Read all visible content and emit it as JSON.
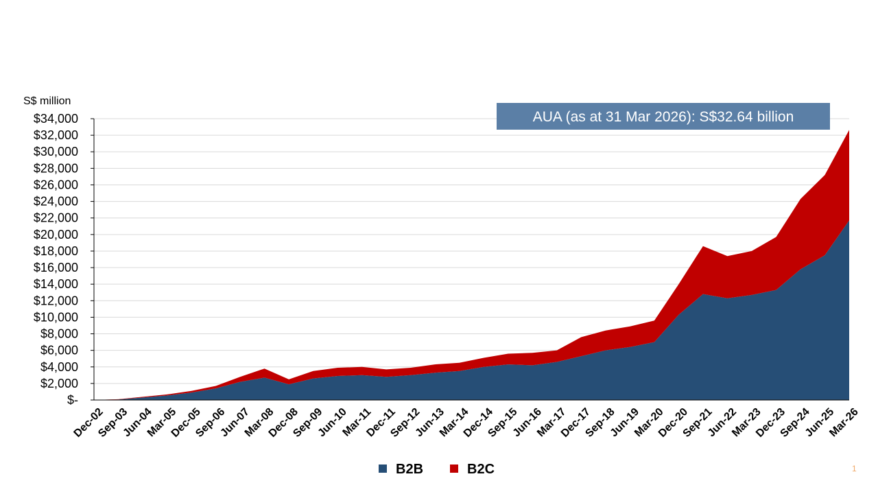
{
  "chart_data": {
    "type": "area",
    "stacked": true,
    "unit_label": "S$ million",
    "annotation": "AUA (as at 31 Mar 2026): S$32.64 billion",
    "ylim": [
      0,
      34000
    ],
    "y_ticks": [
      0,
      2000,
      4000,
      6000,
      8000,
      10000,
      12000,
      14000,
      16000,
      18000,
      20000,
      22000,
      24000,
      26000,
      28000,
      30000,
      32000,
      34000
    ],
    "y_tick_labels": [
      "$-",
      "$2,000",
      "$4,000",
      "$6,000",
      "$8,000",
      "$10,000",
      "$12,000",
      "$14,000",
      "$16,000",
      "$18,000",
      "$20,000",
      "$22,000",
      "$24,000",
      "$26,000",
      "$28,000",
      "$30,000",
      "$32,000",
      "$34,000"
    ],
    "grid": true,
    "legend_position": "bottom",
    "x": [
      "Dec-02",
      "Sep-03",
      "Jun-04",
      "Mar-05",
      "Dec-05",
      "Sep-06",
      "Jun-07",
      "Mar-08",
      "Dec-08",
      "Sep-09",
      "Jun-10",
      "Mar-11",
      "Dec-11",
      "Sep-12",
      "Jun-13",
      "Mar-14",
      "Dec-14",
      "Sep-15",
      "Jun-16",
      "Mar-17",
      "Dec-17",
      "Sep-18",
      "Jun-19",
      "Mar-20",
      "Dec-20",
      "Sep-21",
      "Jun-22",
      "Mar-23",
      "Dec-23",
      "Sep-24",
      "Jun-25",
      "Mar-26"
    ],
    "series": [
      {
        "name": "B2B",
        "color": "#264e76",
        "values": [
          0,
          60,
          300,
          550,
          900,
          1400,
          2200,
          2700,
          1900,
          2600,
          2900,
          3000,
          2800,
          3000,
          3300,
          3500,
          4000,
          4300,
          4200,
          4600,
          5300,
          6000,
          6400,
          7000,
          10300,
          12800,
          12300,
          12700,
          13300,
          15800,
          17500,
          21700
        ]
      },
      {
        "name": "B2C",
        "color": "#c00000",
        "values": [
          0,
          30,
          80,
          120,
          200,
          300,
          600,
          1100,
          600,
          900,
          1000,
          1000,
          900,
          900,
          1000,
          1000,
          1100,
          1300,
          1500,
          1400,
          2300,
          2400,
          2500,
          2600,
          3700,
          5800,
          5100,
          5300,
          6400,
          8500,
          9700,
          10940
        ]
      }
    ]
  },
  "page_number": "1"
}
